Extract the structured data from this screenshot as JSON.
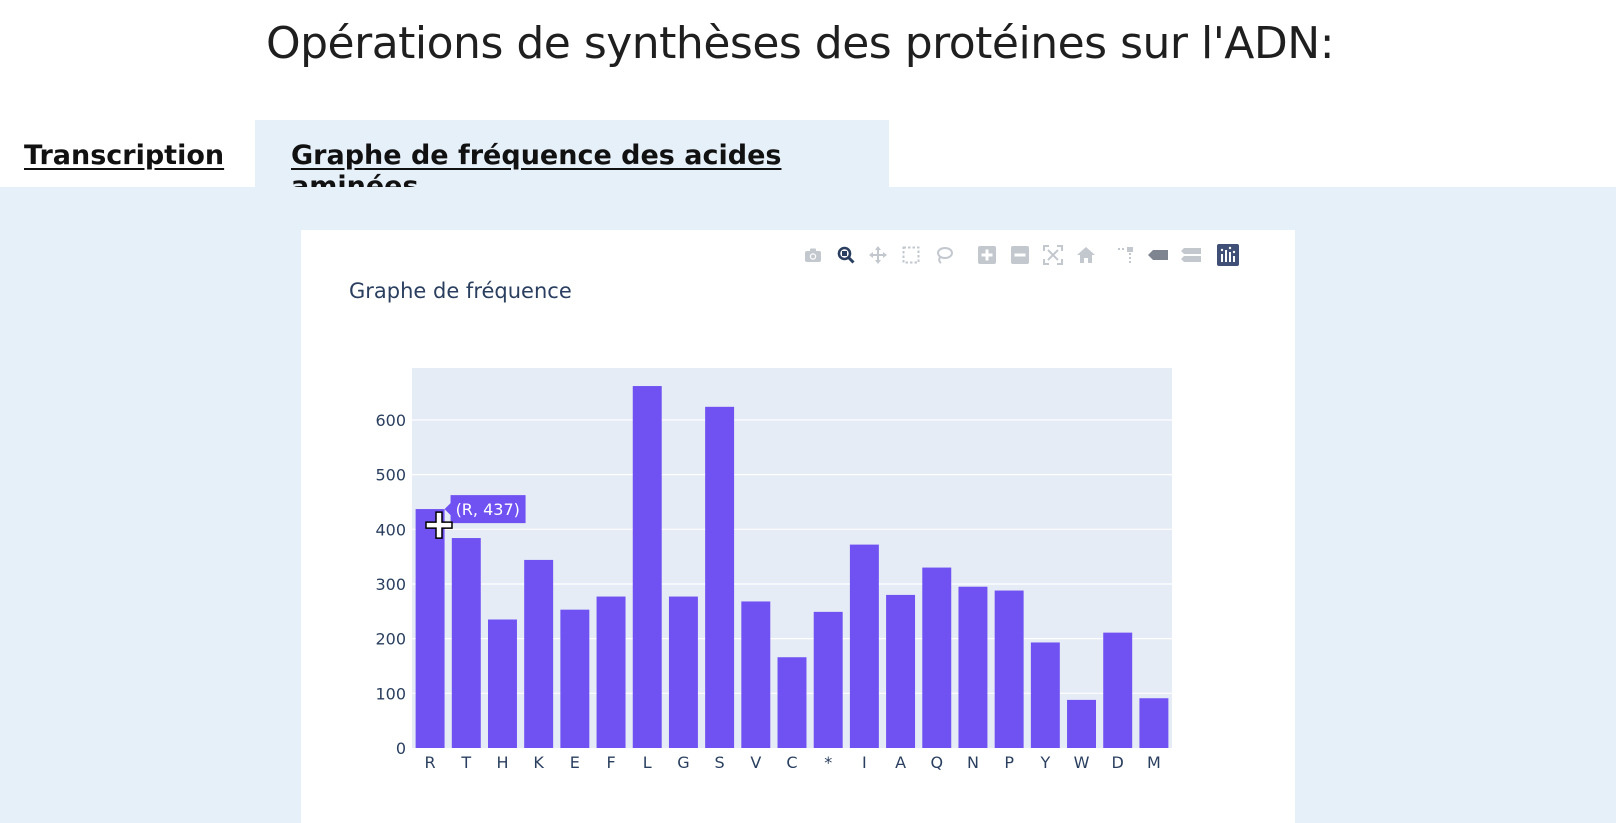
{
  "page": {
    "title": "Opérations de synthèses des protéines sur l'ADN:"
  },
  "tabs": [
    {
      "label": "Transcription",
      "active": false
    },
    {
      "label": "Graphe de fréquence des acides aminées",
      "active": true
    }
  ],
  "modebar": {
    "buttons": [
      "camera-icon",
      "zoom-icon",
      "pan-icon",
      "box-select-icon",
      "lasso-select-icon",
      "zoom-in-icon",
      "zoom-out-icon",
      "autoscale-icon",
      "reset-axes-icon",
      "spike-lines-icon",
      "hover-closest-icon",
      "hover-compare-icon",
      "plotly-logo-icon"
    ]
  },
  "tooltip": {
    "text": "(R, 437)"
  },
  "colors": {
    "bar": "#7051f2",
    "plot_bg": "#e5ecf6",
    "panel_bg": "#e6f0f9",
    "text": "#2a3f5f"
  },
  "chart_data": {
    "type": "bar",
    "title": "Graphe de fréquence",
    "xlabel": "",
    "ylabel": "",
    "categories": [
      "R",
      "T",
      "H",
      "K",
      "E",
      "F",
      "L",
      "G",
      "S",
      "V",
      "C",
      "*",
      "I",
      "A",
      "Q",
      "N",
      "P",
      "Y",
      "W",
      "D",
      "M"
    ],
    "values": [
      437,
      384,
      235,
      344,
      253,
      277,
      662,
      277,
      624,
      268,
      166,
      249,
      372,
      280,
      330,
      295,
      288,
      193,
      88,
      211,
      91
    ],
    "ylim": [
      0,
      695
    ],
    "yticks": [
      0,
      100,
      200,
      300,
      400,
      500,
      600
    ],
    "grid": true,
    "legend": "none"
  }
}
